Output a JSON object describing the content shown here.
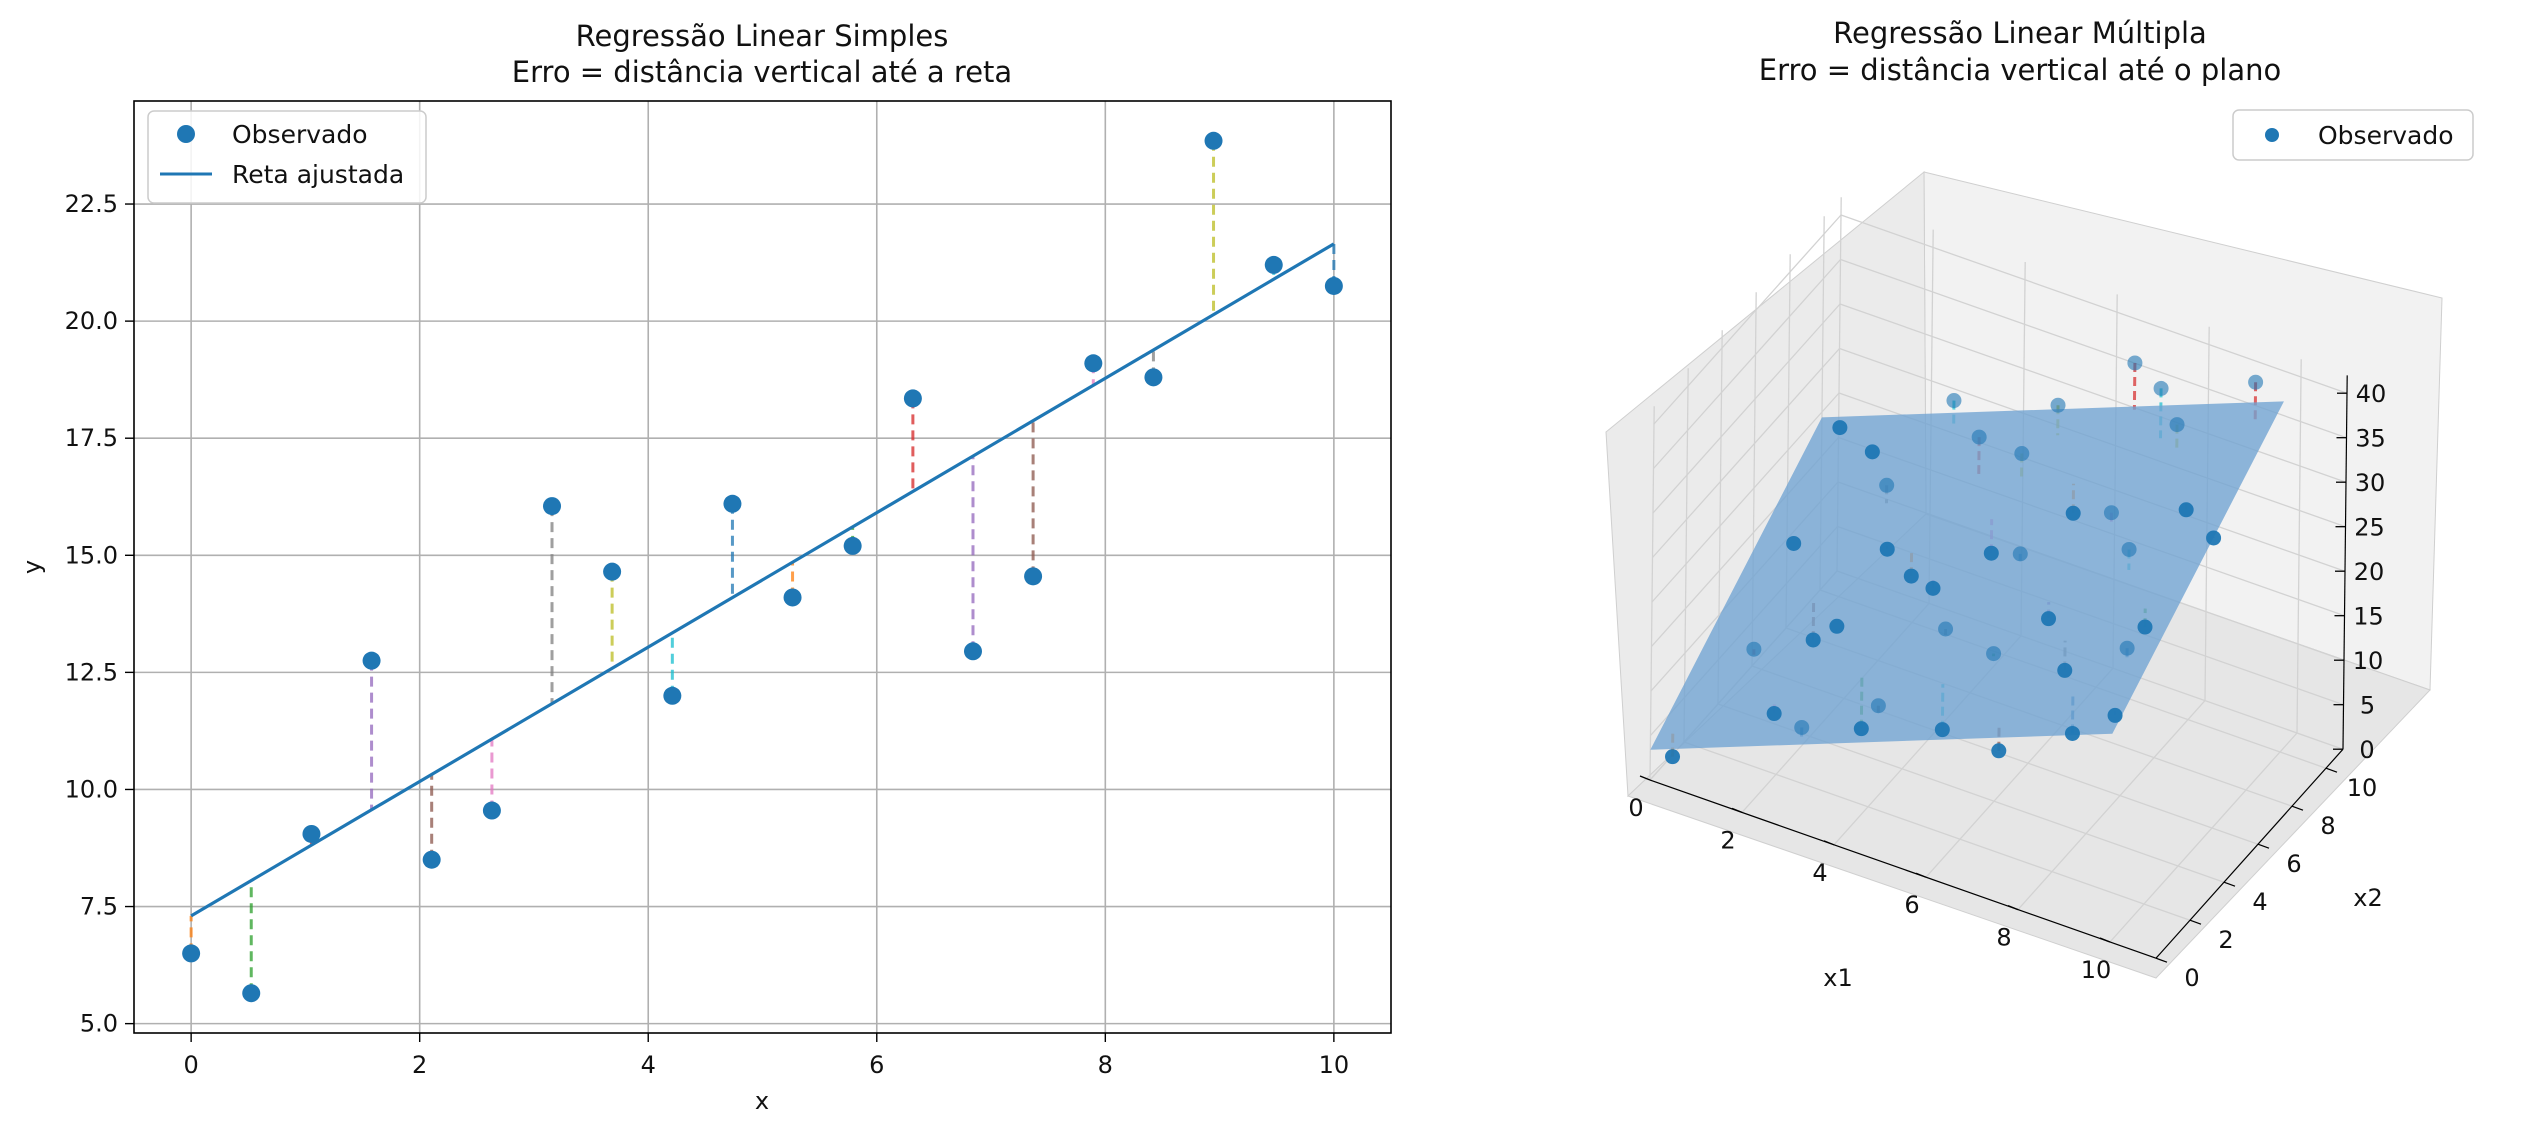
{
  "chart_data": [
    {
      "type": "scatter",
      "title": "Regressão Linear Simples",
      "subtitle": "Erro = distância vertical até a reta",
      "xlabel": "x",
      "ylabel": "y",
      "xlim": [
        -0.5,
        10.5
      ],
      "ylim": [
        4.8,
        24.7
      ],
      "xticks": [
        0,
        2,
        4,
        6,
        8,
        10
      ],
      "yticks": [
        5.0,
        7.5,
        10.0,
        12.5,
        15.0,
        17.5,
        20.0,
        22.5
      ],
      "grid": true,
      "legend_position": "top-left",
      "legend": [
        "Observado",
        "Reta ajustada"
      ],
      "series": [
        {
          "name": "Observado",
          "color": "#1f77b4",
          "x": [
            0.0,
            0.526,
            1.053,
            1.579,
            2.105,
            2.632,
            3.158,
            3.684,
            4.211,
            4.737,
            5.263,
            5.789,
            6.316,
            6.842,
            7.368,
            7.895,
            8.421,
            8.947,
            9.474,
            10.0
          ],
          "y": [
            6.5,
            5.65,
            9.05,
            12.75,
            8.5,
            9.55,
            16.05,
            14.65,
            12.0,
            16.1,
            14.1,
            15.2,
            18.35,
            12.95,
            14.55,
            19.1,
            18.8,
            23.85,
            21.2,
            20.75
          ]
        },
        {
          "name": "Reta ajustada",
          "color": "#1f77b4",
          "x": [
            0,
            10
          ],
          "y": [
            7.3,
            21.65
          ]
        }
      ],
      "residual_colors": [
        "#ff7f0e",
        "#2ca02c",
        "#d62728",
        "#9467bd",
        "#8c564b",
        "#e377c2",
        "#7f7f7f",
        "#bcbd22",
        "#17becf",
        "#1f77b4"
      ]
    },
    {
      "type": "scatter3d",
      "title": "Regressão Linear Múltipla",
      "subtitle": "Erro = distância vertical até o plano",
      "xlabel": "x1",
      "ylabel": "x2",
      "zlabel": "",
      "xticks": [
        0,
        2,
        4,
        6,
        8,
        10
      ],
      "yticks": [
        0,
        2,
        4,
        6,
        8,
        10
      ],
      "zticks": [
        0,
        5,
        10,
        15,
        20,
        25,
        30,
        35,
        40
      ],
      "legend_position": "top-right",
      "legend": [
        "Observado"
      ],
      "series": [
        {
          "name": "Observado",
          "color": "#1f77b4",
          "plane": {
            "z_at_origin": 3.4,
            "slope_x1": 2.0,
            "slope_x2": 1.6
          },
          "points": [
            [
              0.3,
              0.5,
              2.1
            ],
            [
              0.8,
              6.2,
              14.8
            ],
            [
              1.2,
              2.8,
              10.9
            ],
            [
              1.5,
              8.9,
              20.6
            ],
            [
              1.9,
              4.4,
              9.8
            ],
            [
              2.2,
              1.3,
              8.7
            ],
            [
              2.4,
              7.3,
              21.9
            ],
            [
              2.7,
              3.6,
              14.5
            ],
            [
              3.0,
              9.6,
              27.6
            ],
            [
              3.2,
              0.2,
              11.3
            ],
            [
              3.5,
              5.8,
              16.9
            ],
            [
              3.8,
              2.1,
              8.2
            ],
            [
              4.1,
              8.1,
              28.7
            ],
            [
              4.3,
              4.9,
              18.9
            ],
            [
              4.6,
              0.9,
              14.8
            ],
            [
              4.9,
              6.7,
              20.1
            ],
            [
              5.2,
              3.2,
              19.6
            ],
            [
              5.4,
              9.2,
              32.3
            ],
            [
              5.7,
              1.7,
              12.4
            ],
            [
              6.0,
              5.4,
              24.8
            ],
            [
              6.3,
              7.7,
              25.0
            ],
            [
              6.5,
              2.5,
              20.7
            ],
            [
              6.8,
              9.9,
              38.1
            ],
            [
              7.1,
              4.1,
              22.3
            ],
            [
              7.4,
              0.4,
              15.9
            ],
            [
              7.6,
              6.4,
              30.2
            ],
            [
              7.9,
              2.9,
              20.5
            ],
            [
              8.2,
              8.6,
              36.5
            ],
            [
              8.5,
              5.0,
              30.7
            ],
            [
              8.7,
              1.2,
              18.5
            ],
            [
              9.0,
              7.0,
              31.8
            ],
            [
              9.3,
              3.8,
              26.0
            ],
            [
              9.6,
              9.4,
              42.1
            ],
            [
              9.8,
              0.7,
              23.6
            ],
            [
              10.0,
              5.9,
              32.8
            ],
            [
              0.5,
              9.7,
              19.8
            ],
            [
              2.9,
              6.0,
              18.4
            ],
            [
              5.1,
              7.9,
              29.1
            ],
            [
              7.7,
              9.0,
              38.8
            ],
            [
              9.5,
              2.2,
              27.4
            ]
          ]
        }
      ],
      "surface_color": "#6fa3d2"
    }
  ]
}
